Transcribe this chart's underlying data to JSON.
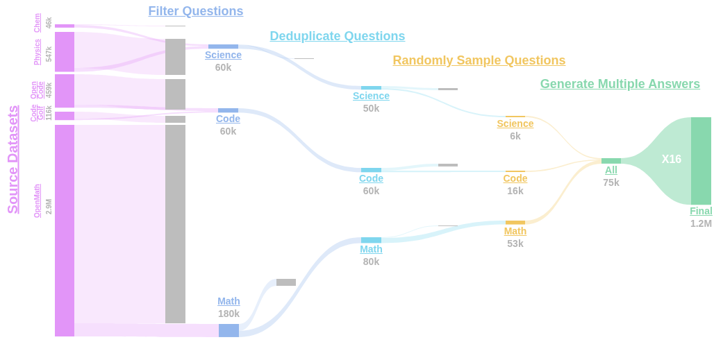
{
  "chart_data": {
    "type": "other",
    "categories": [
      "Chem",
      "Physics",
      "Open Code",
      "Code Golf",
      "OpenMath",
      "Science",
      "Code",
      "Math",
      "Science",
      "Code",
      "Math",
      "Science",
      "Code",
      "Math",
      "All",
      "Final"
    ],
    "values": [
      46000,
      547000,
      459000,
      116000,
      2900000,
      60000,
      60000,
      180000,
      50000,
      60000,
      80000,
      6000,
      16000,
      53000,
      75000,
      1200000
    ],
    "value_labels": [
      "46k",
      "547k",
      "459k",
      "116k",
      "2.9M",
      "60k",
      "60k",
      "180k",
      "50k",
      "60k",
      "80k",
      "6k",
      "16k",
      "53k",
      "75k",
      "1.2M"
    ],
    "colors": [
      "#e295f8",
      "#e295f8",
      "#e295f8",
      "#e295f8",
      "#e295f8",
      "#93b6ec",
      "#93b6ec",
      "#93b6ec",
      "#7fd6ee",
      "#7fd6ee",
      "#7fd6ee",
      "#f1c660",
      "#f1c660",
      "#f1c660",
      "#88d8ae",
      "#88d8ae"
    ],
    "annotations": [
      "Source Datasets",
      "Filter Questions",
      "Deduplicate Questions",
      "Randomly Sample Questions",
      "Generate Multiple Answers",
      "X16"
    ]
  }
}
